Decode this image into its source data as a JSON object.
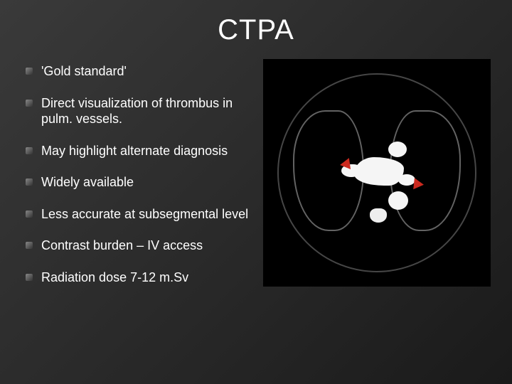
{
  "title": "CTPA",
  "bullets": [
    "'Gold standard'",
    "Direct visualization of thrombus in pulm. vessels.",
    "May highlight alternate diagnosis",
    "Widely available",
    "Less accurate at subsegmental level",
    "Contrast burden – IV access",
    "Radiation dose 7-12 m.Sv"
  ],
  "style": {
    "background_gradient": [
      "#3a3a3a",
      "#2a2a2a",
      "#1a1a1a"
    ],
    "text_color": "#ffffff",
    "title_fontsize": 40,
    "bullet_fontsize": 18,
    "bullet_marker_color": "#666666",
    "arrow_color": "#cc2a1f",
    "vessel_color": "#f5f5f5",
    "image_bg": "#000000"
  },
  "image": {
    "description": "Axial CTPA slice showing pulmonary arteries with contrast; red arrowheads indicate filling defects (thrombus)",
    "arrows": 2
  }
}
